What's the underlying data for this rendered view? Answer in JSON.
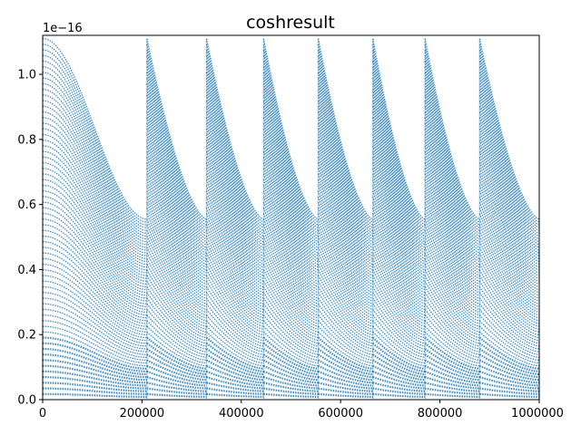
{
  "chart_data": {
    "type": "scatter",
    "title": "coshresult",
    "xlabel": "",
    "ylabel": "",
    "xlim": [
      0,
      1000000
    ],
    "ylim": [
      0,
      1.12e-16
    ],
    "y_offset_label": "1e−16",
    "x_ticks": [
      0,
      200000,
      400000,
      600000,
      800000,
      1000000
    ],
    "x_tick_labels": [
      "0",
      "200000",
      "400000",
      "600000",
      "800000",
      "1000000"
    ],
    "y_ticks": [
      0,
      0.2,
      0.4,
      0.6,
      0.8,
      1.0
    ],
    "y_tick_labels": [
      "0.0",
      "0.2",
      "0.4",
      "0.6",
      "0.8",
      "1.0"
    ],
    "grid": false,
    "legend": "none",
    "marker_color": "#1f77b4",
    "segments": [
      {
        "x_start": 0,
        "x_end": 210000,
        "y_peak": 1.11e-16,
        "y_end": 5.55e-17,
        "shape": "cosine"
      },
      {
        "x_start": 210000,
        "x_end": 330000,
        "y_peak": 1.11e-16,
        "y_end": 5.55e-17,
        "shape": "decay"
      },
      {
        "x_start": 330000,
        "x_end": 445000,
        "y_peak": 1.11e-16,
        "y_end": 5.55e-17,
        "shape": "decay"
      },
      {
        "x_start": 445000,
        "x_end": 555000,
        "y_peak": 1.11e-16,
        "y_end": 5.55e-17,
        "shape": "decay"
      },
      {
        "x_start": 555000,
        "x_end": 665000,
        "y_peak": 1.11e-16,
        "y_end": 5.55e-17,
        "shape": "decay"
      },
      {
        "x_start": 665000,
        "x_end": 770000,
        "y_peak": 1.11e-16,
        "y_end": 5.55e-17,
        "shape": "decay"
      },
      {
        "x_start": 770000,
        "x_end": 880000,
        "y_peak": 1.11e-16,
        "y_end": 5.55e-17,
        "shape": "decay"
      },
      {
        "x_start": 880000,
        "x_end": 1000000,
        "y_peak": 1.11e-16,
        "y_end": 5.55e-17,
        "shape": "decay"
      }
    ]
  }
}
